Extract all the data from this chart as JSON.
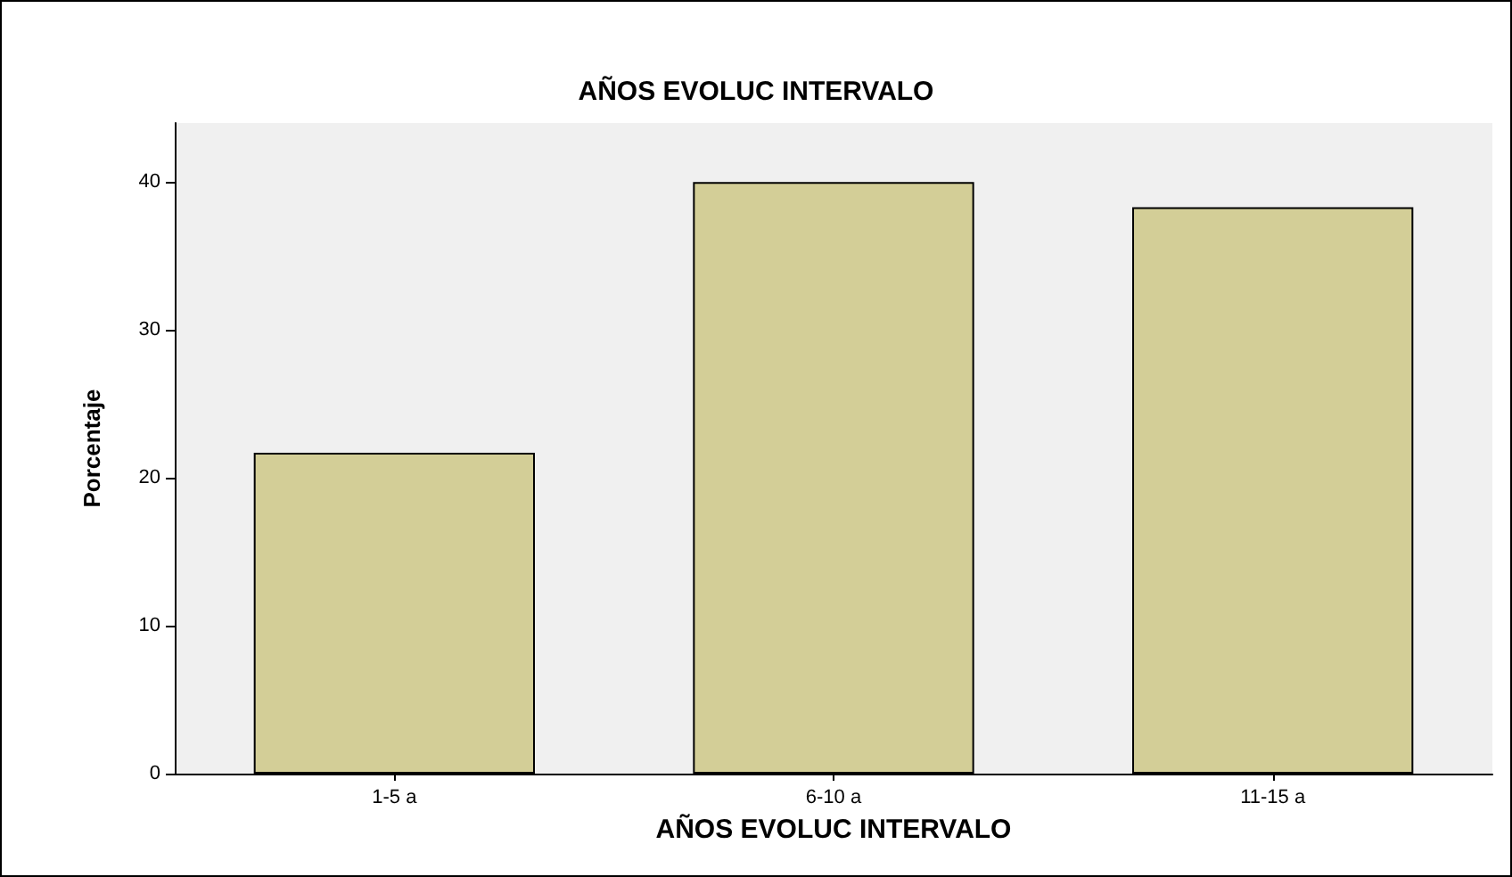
{
  "chart_data": {
    "type": "bar",
    "title": "AÑOS EVOLUC INTERVALO",
    "xlabel": "AÑOS EVOLUC INTERVALO",
    "ylabel": "Porcentaje",
    "categories": [
      "1-5 a",
      "6-10 a",
      "11-15 a"
    ],
    "values": [
      21.7,
      40.0,
      38.3
    ],
    "color": "#d3ce97",
    "ylim": [
      0,
      44
    ],
    "yticks": [
      0,
      10,
      20,
      30,
      40
    ],
    "grid": false
  }
}
